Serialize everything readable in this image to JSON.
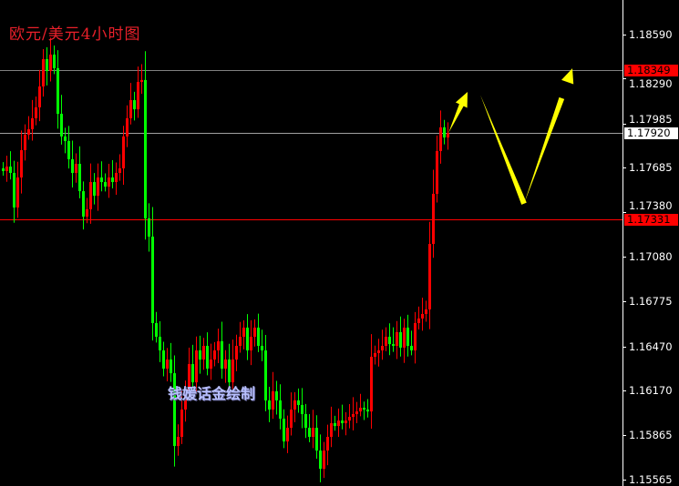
{
  "chart_data": {
    "type": "candlestick",
    "title": "欧元/美元4小时图",
    "watermark": "钱媛话金绘制",
    "ylim": [
      1.1552,
      1.18825
    ],
    "y_ticks": [
      "1.18590",
      "1.18290",
      "1.17985",
      "1.17685",
      "1.17380",
      "1.17080",
      "1.16775",
      "1.16470",
      "1.16170",
      "1.15865",
      "1.15565"
    ],
    "grid": false,
    "colors": {
      "up": "#ff0000",
      "down": "#00ff00",
      "background": "#000000",
      "arrow": "#ffff00"
    },
    "levels": [
      {
        "price": "1.18349",
        "line_color": "#808080",
        "label_bg": "#ff0000",
        "label_color": "#000000"
      },
      {
        "price": "1.17920",
        "line_color": "#a0a0a0",
        "label_bg": "#ffffff",
        "label_color": "#000000"
      },
      {
        "price": "1.17331",
        "line_color": "#ff0000",
        "label_bg": "#ff0000",
        "label_color": "#000000"
      }
    ],
    "first_open": 1.1768,
    "closes": [
      1.17662,
      1.17692,
      1.17649,
      1.17414,
      1.17618,
      1.17804,
      1.17909,
      1.17946,
      1.18021,
      1.18095,
      1.18237,
      1.18423,
      1.18342,
      1.18454,
      1.18361,
      1.18051,
      1.17897,
      1.17866,
      1.17742,
      1.17649,
      1.17711,
      1.17525,
      1.17352,
      1.17402,
      1.17587,
      1.17494,
      1.17618,
      1.17587,
      1.17556,
      1.17618,
      1.17587,
      1.17649,
      1.1768,
      1.17897,
      1.18021,
      1.18144,
      1.18082,
      1.18268,
      1.18281,
      1.1734,
      1.17216,
      1.16628,
      1.16535,
      1.16442,
      1.16318,
      1.1638,
      1.16287,
      1.15792,
      1.15854,
      1.1604,
      1.16164,
      1.16349,
      1.16225,
      1.16442,
      1.1638,
      1.16473,
      1.16318,
      1.1638,
      1.16442,
      1.16504,
      1.16318,
      1.1638,
      1.16225,
      1.1638,
      1.16473,
      1.16535,
      1.16597,
      1.16442,
      1.16535,
      1.16597,
      1.16473,
      1.16442,
      1.16102,
      1.1604,
      1.16164,
      1.16102,
      1.15978,
      1.15823,
      1.15916,
      1.1604,
      1.16102,
      1.16071,
      1.16009,
      1.15916,
      1.15854,
      1.15916,
      1.15761,
      1.15637,
      1.15761,
      1.15854,
      1.15947,
      1.15928,
      1.15965,
      1.15947,
      1.15965,
      1.1599,
      1.16009,
      1.16027,
      1.16052,
      1.1604,
      1.16027,
      1.16399,
      1.16424,
      1.16442,
      1.16473,
      1.16535,
      1.16485,
      1.16473,
      1.16566,
      1.16461,
      1.16597,
      1.16473,
      1.16442,
      1.16628,
      1.16659,
      1.1669,
      1.16721,
      1.17166,
      1.17507,
      1.17798,
      1.17959,
      1.1789,
      1.1792
    ],
    "annotations": [
      {
        "type": "arrow",
        "path": [
          [
            1.1792,
            "last"
          ],
          [
            1.182,
            "up"
          ]
        ]
      },
      {
        "type": "arrow",
        "path": [
          [
            1.1818,
            "down"
          ],
          [
            1.1744,
            "low"
          ],
          [
            1.1836,
            "up"
          ]
        ]
      }
    ]
  }
}
